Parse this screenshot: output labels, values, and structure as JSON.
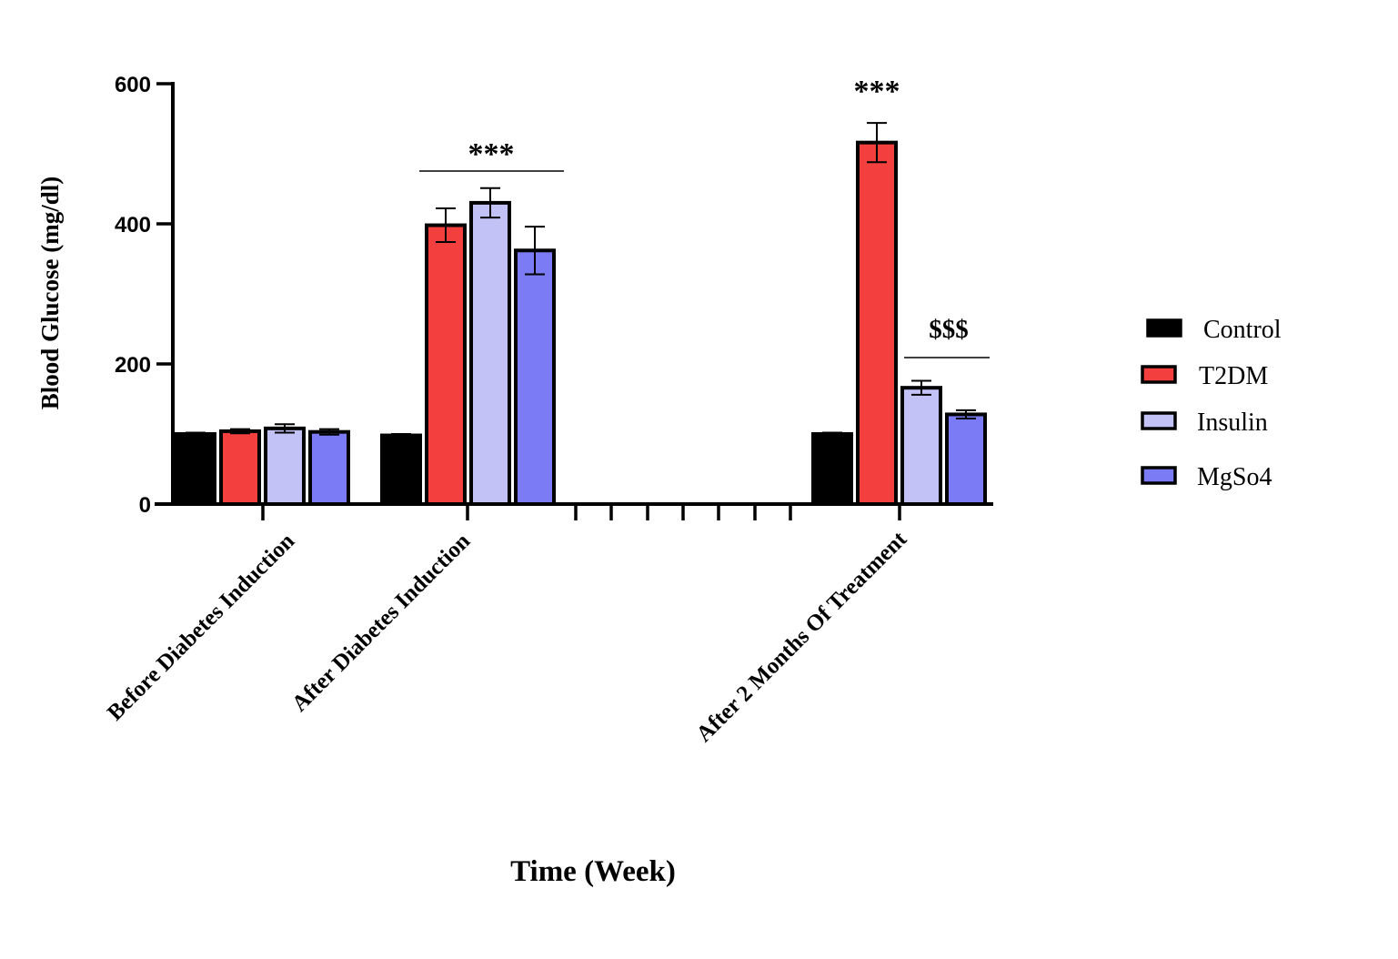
{
  "chart_data": {
    "type": "bar",
    "title": "",
    "xlabel": "Time (Week)",
    "ylabel": "Blood Glucose  (mg/dl)",
    "ylim": [
      0,
      600
    ],
    "yticks": [
      0,
      200,
      400,
      600
    ],
    "categories": [
      "Before Diabetes Induction",
      "After Diabetes Induction",
      "After 2 Months Of Treatment"
    ],
    "series": [
      {
        "name": "Control",
        "color": "#000000",
        "values": [
          100,
          98,
          100
        ],
        "errors": [
          2,
          2,
          2
        ]
      },
      {
        "name": "T2DM",
        "color": "#f43f3f",
        "values": [
          104,
          398,
          516
        ],
        "errors": [
          3,
          24,
          28
        ]
      },
      {
        "name": "Insulin",
        "color": "#c2c2f7",
        "values": [
          108,
          430,
          166
        ],
        "errors": [
          6,
          21,
          10
        ]
      },
      {
        "name": "MgSo4",
        "color": "#7b7bf5",
        "values": [
          103,
          362,
          128
        ],
        "errors": [
          4,
          34,
          6
        ]
      }
    ],
    "legend_position": "right",
    "axis_break": "between After Diabetes Induction and After 2 Months Of Treatment",
    "annotations": [
      {
        "text": "***",
        "category": "After Diabetes Induction",
        "spans": "T2DM, Insulin, MgSo4"
      },
      {
        "text": "***",
        "category": "After 2 Months Of Treatment",
        "spans": "T2DM"
      },
      {
        "text": "$$$",
        "category": "After 2 Months Of Treatment",
        "spans": "Insulin, MgSo4"
      }
    ]
  }
}
